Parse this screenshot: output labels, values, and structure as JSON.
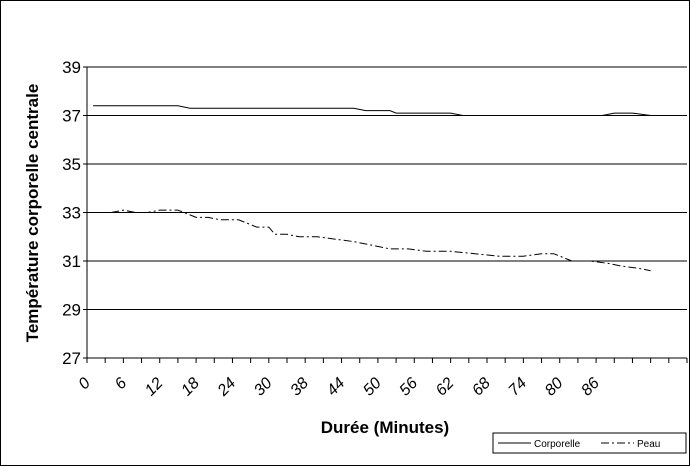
{
  "chart_data": {
    "type": "line",
    "title": "",
    "xlabel": "Durée (Minutes)",
    "ylabel": "Température corporelle centrale",
    "ylim": [
      27,
      39
    ],
    "yticks": [
      "27",
      "29",
      "31",
      "33",
      "35",
      "37",
      "39"
    ],
    "xlim": [
      0,
      99
    ],
    "xtick_labels": [
      "0",
      "6",
      "12",
      "18",
      "24",
      "30",
      "38",
      "44",
      "50",
      "56",
      "62",
      "68",
      "74",
      "80",
      "86"
    ],
    "grid": true,
    "legend_position": "bottom-right",
    "series": [
      {
        "name": "Corporelle",
        "color": "#000000",
        "style": "solid",
        "x": [
          1,
          5,
          10,
          15,
          17,
          20,
          25,
          30,
          35,
          40,
          44,
          46,
          50,
          51,
          55,
          60,
          62,
          65,
          70,
          75,
          80,
          85,
          87,
          90,
          93
        ],
        "y": [
          37.4,
          37.4,
          37.4,
          37.4,
          37.3,
          37.3,
          37.3,
          37.3,
          37.3,
          37.3,
          37.3,
          37.2,
          37.2,
          37.1,
          37.1,
          37.1,
          37.0,
          37.0,
          37.0,
          37.0,
          37.0,
          37.0,
          37.1,
          37.1,
          37.0
        ]
      },
      {
        "name": "Peau",
        "color": "#000000",
        "style": "dashdot",
        "x": [
          4,
          6,
          8,
          10,
          12,
          15,
          17,
          18,
          20,
          22,
          25,
          27,
          28,
          30,
          31,
          33,
          35,
          38,
          41,
          44,
          46,
          50,
          53,
          56,
          60,
          64,
          68,
          72,
          75,
          77,
          80,
          83,
          86,
          88,
          91,
          93
        ],
        "y": [
          33.0,
          33.1,
          33.0,
          33.0,
          33.1,
          33.1,
          32.9,
          32.8,
          32.8,
          32.7,
          32.7,
          32.5,
          32.4,
          32.4,
          32.1,
          32.1,
          32.0,
          32.0,
          31.9,
          31.8,
          31.7,
          31.5,
          31.5,
          31.4,
          31.4,
          31.3,
          31.2,
          31.2,
          31.3,
          31.3,
          31.0,
          31.0,
          30.9,
          30.8,
          30.7,
          30.6
        ]
      }
    ]
  }
}
